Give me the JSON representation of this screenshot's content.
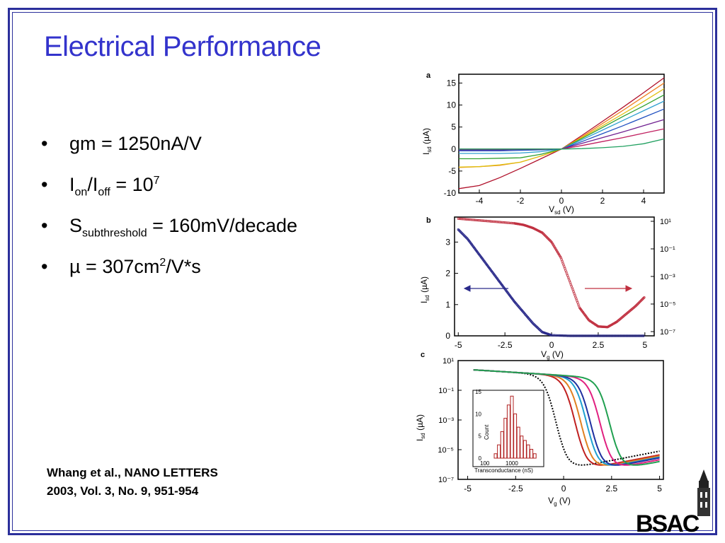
{
  "slide": {
    "title": "Electrical Performance",
    "bullets": [
      {
        "base1": "gm = 1250nA/V"
      },
      {
        "b1": "I",
        "s1": "on",
        "b2": "/I",
        "s2": "off",
        "b3": " = 10",
        "sup": "7"
      },
      {
        "b1": "S",
        "s1": "subthreshold",
        "b2": " = 160mV/decade"
      },
      {
        "b1": "µ = 307cm",
        "sup": "2",
        "b2": "/V*s"
      }
    ],
    "bullet_char": "•",
    "citation_line1": "Whang et al., NANO LETTERS",
    "citation_line2": "2003, Vol. 3, No. 9, 951-954",
    "logo_text": "BSAC",
    "colors": {
      "title": "#3333cc",
      "frame": "#2b2f9b"
    }
  },
  "chart_data": [
    {
      "panel": "a",
      "type": "line",
      "xlabel": "Vsd (V)",
      "ylabel": "Isd (µA)",
      "xlim": [
        -5,
        5
      ],
      "ylim": [
        -10,
        17
      ],
      "xticks": [
        -4,
        -2,
        0,
        2,
        4
      ],
      "yticks": [
        -10,
        -5,
        0,
        5,
        10,
        15
      ],
      "series": [
        {
          "color": "#b0102a",
          "values": [
            [
              -5,
              -9
            ],
            [
              -4,
              -8.3
            ],
            [
              -3,
              -6.5
            ],
            [
              -2,
              -4.4
            ],
            [
              -1,
              -2.2
            ],
            [
              0,
              0
            ],
            [
              1,
              3.1
            ],
            [
              2,
              6.3
            ],
            [
              3,
              9.5
            ],
            [
              4,
              12.8
            ],
            [
              5,
              16.2
            ]
          ]
        },
        {
          "color": "#f08020",
          "values": [
            [
              -5,
              -4.2
            ],
            [
              -4,
              -4
            ],
            [
              -3,
              -3.7
            ],
            [
              -2,
              -3
            ],
            [
              -1,
              -1.6
            ],
            [
              0,
              0
            ],
            [
              1,
              2.8
            ],
            [
              2,
              5.8
            ],
            [
              3,
              8.8
            ],
            [
              4,
              11.9
            ],
            [
              5,
              15
            ]
          ]
        },
        {
          "color": "#e0c010",
          "values": [
            [
              -5,
              -4.1
            ],
            [
              -4,
              -4
            ],
            [
              -3,
              -3.6
            ],
            [
              -2,
              -3
            ],
            [
              -1,
              -1.6
            ],
            [
              0,
              0
            ],
            [
              1,
              2.6
            ],
            [
              2,
              5.3
            ],
            [
              3,
              8
            ],
            [
              4,
              10.8
            ],
            [
              5,
              13.7
            ]
          ]
        },
        {
          "color": "#30a030",
          "values": [
            [
              -5,
              -2.2
            ],
            [
              -4,
              -2.2
            ],
            [
              -3,
              -2.1
            ],
            [
              -2,
              -2
            ],
            [
              -1,
              -1.2
            ],
            [
              0,
              0
            ],
            [
              1,
              2.4
            ],
            [
              2,
              4.9
            ],
            [
              3,
              7.4
            ],
            [
              4,
              9.8
            ],
            [
              5,
              12.3
            ]
          ]
        },
        {
          "color": "#30a0d0",
          "values": [
            [
              -5,
              -1
            ],
            [
              -4,
              -1
            ],
            [
              -3,
              -1
            ],
            [
              -2,
              -0.9
            ],
            [
              -1,
              -0.6
            ],
            [
              0,
              0
            ],
            [
              1,
              2.1
            ],
            [
              2,
              4.3
            ],
            [
              3,
              6.5
            ],
            [
              4,
              8.7
            ],
            [
              5,
              10.9
            ]
          ]
        },
        {
          "color": "#2050c0",
          "values": [
            [
              -5,
              -0.4
            ],
            [
              -4,
              -0.4
            ],
            [
              -3,
              -0.4
            ],
            [
              -2,
              -0.3
            ],
            [
              -1,
              -0.2
            ],
            [
              0,
              0
            ],
            [
              1,
              1.7
            ],
            [
              2,
              3.5
            ],
            [
              3,
              5.3
            ],
            [
              4,
              7.2
            ],
            [
              5,
              9.1
            ]
          ]
        },
        {
          "color": "#702090",
          "values": [
            [
              -5,
              -0.2
            ],
            [
              -4,
              -0.2
            ],
            [
              -3,
              -0.2
            ],
            [
              -2,
              -0.1
            ],
            [
              -1,
              -0.1
            ],
            [
              0,
              0
            ],
            [
              1,
              1.3
            ],
            [
              2,
              2.6
            ],
            [
              3,
              3.9
            ],
            [
              4,
              5.3
            ],
            [
              5,
              6.7
            ]
          ]
        },
        {
          "color": "#c02060",
          "values": [
            [
              -5,
              0
            ],
            [
              -4,
              0
            ],
            [
              -3,
              0
            ],
            [
              -2,
              0
            ],
            [
              -1,
              0
            ],
            [
              0,
              0
            ],
            [
              1,
              0.8
            ],
            [
              2,
              1.7
            ],
            [
              3,
              2.6
            ],
            [
              4,
              3.6
            ],
            [
              5,
              4.6
            ]
          ]
        },
        {
          "color": "#20a060",
          "values": [
            [
              -5,
              0
            ],
            [
              -4,
              0
            ],
            [
              -3,
              0
            ],
            [
              -2,
              0
            ],
            [
              -1,
              0
            ],
            [
              0,
              0
            ],
            [
              1,
              0.1
            ],
            [
              2,
              0.3
            ],
            [
              3,
              0.6
            ],
            [
              4,
              1.2
            ],
            [
              5,
              2.3
            ]
          ]
        }
      ]
    },
    {
      "panel": "b",
      "type": "scatter",
      "xlabel": "Vg (V)",
      "ylabel": "Isd (µA)",
      "xlim": [
        -5.2,
        5.5
      ],
      "ylim": [
        0,
        3.8
      ],
      "xticks": [
        "-5",
        "-2.5",
        "0",
        "2.5",
        "5"
      ],
      "yticks": [
        "0",
        "1",
        "2",
        "3"
      ],
      "right_ticks": [
        "10¹",
        "10⁻¹",
        "10⁻³",
        "10⁻⁵",
        "10⁻⁷"
      ],
      "series": [
        {
          "color": "#2a2a8a",
          "scale": "linear",
          "values": [
            [
              -5,
              3.4
            ],
            [
              -4.5,
              3.1
            ],
            [
              -4,
              2.7
            ],
            [
              -3.5,
              2.3
            ],
            [
              -3,
              1.9
            ],
            [
              -2.5,
              1.5
            ],
            [
              -2,
              1.1
            ],
            [
              -1.5,
              0.75
            ],
            [
              -1,
              0.4
            ],
            [
              -0.5,
              0.12
            ],
            [
              0,
              0.02
            ],
            [
              1,
              0
            ],
            [
              2,
              0
            ],
            [
              3,
              0
            ],
            [
              4,
              0
            ],
            [
              5,
              0
            ]
          ]
        },
        {
          "color": "#c03040",
          "scale": "log",
          "values": [
            [
              -5,
              3.75
            ],
            [
              -4,
              3.7
            ],
            [
              -3,
              3.65
            ],
            [
              -2,
              3.6
            ],
            [
              -1.5,
              3.55
            ],
            [
              -1,
              3.45
            ],
            [
              -0.5,
              3.3
            ],
            [
              0,
              3.0
            ],
            [
              0.5,
              2.5
            ],
            [
              1,
              1.7
            ],
            [
              1.5,
              0.9
            ],
            [
              2,
              0.5
            ],
            [
              2.5,
              0.3
            ],
            [
              3,
              0.28
            ],
            [
              3.5,
              0.45
            ],
            [
              4,
              0.7
            ],
            [
              4.5,
              0.95
            ],
            [
              5,
              1.25
            ]
          ]
        }
      ]
    },
    {
      "panel": "c",
      "type": "scatter",
      "xlabel": "Vg (V)",
      "ylabel": "Isd (µA)",
      "yscale": "log",
      "xlim": [
        -5.5,
        5.2
      ],
      "ylim": [
        1e-07,
        10
      ],
      "xticks": [
        "-5",
        "-2.5",
        "0",
        "2.5",
        "5"
      ],
      "yticks": [
        "10¹",
        "10⁻¹",
        "10⁻³",
        "10⁻⁵",
        "10⁻⁷"
      ],
      "series": [
        {
          "color": "#000000",
          "shift": -0.4
        },
        {
          "color": "#c02020",
          "shift": 0.6
        },
        {
          "color": "#e08020",
          "shift": 0.9
        },
        {
          "color": "#20a0d0",
          "shift": 1.2
        },
        {
          "color": "#2030a0",
          "shift": 1.4
        },
        {
          "color": "#e02080",
          "shift": 1.9
        },
        {
          "color": "#20a050",
          "shift": 2.4
        }
      ],
      "inset": {
        "type": "bar",
        "xlabel": "Transconductance (nS)",
        "ylabel": "Count",
        "xticks": [
          "100",
          "1000"
        ],
        "yticks": [
          "0",
          "5",
          "10",
          "15"
        ],
        "values": [
          1,
          3,
          6,
          9,
          12,
          14,
          10,
          7,
          5,
          4,
          3,
          2,
          1
        ]
      }
    }
  ]
}
